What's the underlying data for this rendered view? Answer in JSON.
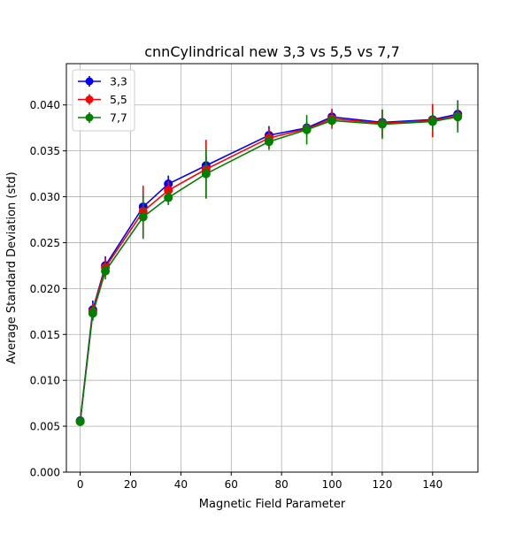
{
  "chart_data": {
    "type": "line",
    "title": "cnnCylindrical new 3,3 vs 5,5 vs 7,7",
    "xlabel": "Magnetic Field Parameter",
    "ylabel": "Average Standard Deviation (std)",
    "xlim": [
      -5.5,
      158
    ],
    "ylim": [
      0.0,
      0.0445
    ],
    "xticks": [
      0,
      20,
      40,
      60,
      80,
      100,
      120,
      140
    ],
    "xtick_labels": [
      "0",
      "20",
      "40",
      "60",
      "80",
      "100",
      "120",
      "140"
    ],
    "yticks": [
      0.0,
      0.005,
      0.01,
      0.015,
      0.02,
      0.025,
      0.03,
      0.035,
      0.04
    ],
    "ytick_labels": [
      "0.000",
      "0.005",
      "0.010",
      "0.015",
      "0.020",
      "0.025",
      "0.030",
      "0.035",
      "0.040"
    ],
    "grid": true,
    "legend_position": "top-left",
    "x": [
      0,
      5,
      10,
      25,
      35,
      50,
      75,
      90,
      100,
      120,
      140,
      150
    ],
    "series": [
      {
        "name": "3,3",
        "color": "#0000ff",
        "values": [
          0.0056,
          0.0177,
          0.0225,
          0.0289,
          0.0314,
          0.0334,
          0.0367,
          0.0375,
          0.0387,
          0.0381,
          0.0384,
          0.039
        ],
        "errors": [
          0.0003,
          0.001,
          0.001,
          0.0015,
          0.0009,
          0.001,
          0.001,
          0.0006,
          0.0007,
          0.0005,
          0.0006,
          0.0015
        ]
      },
      {
        "name": "5,5",
        "color": "#ff0000",
        "values": [
          0.0055,
          0.0175,
          0.0223,
          0.0284,
          0.0307,
          0.033,
          0.0364,
          0.0374,
          0.0385,
          0.038,
          0.0383,
          0.0388
        ],
        "errors": [
          0.0003,
          0.0009,
          0.001,
          0.0028,
          0.001,
          0.0032,
          0.0011,
          0.0008,
          0.0011,
          0.0015,
          0.0018,
          0.0012
        ]
      },
      {
        "name": "7,7",
        "color": "#008000",
        "values": [
          0.0055,
          0.0173,
          0.0219,
          0.0278,
          0.0299,
          0.0325,
          0.036,
          0.0373,
          0.0383,
          0.0379,
          0.0382,
          0.0387
        ],
        "errors": [
          0.0003,
          0.0008,
          0.0009,
          0.0024,
          0.0008,
          0.0027,
          0.0009,
          0.0016,
          0.0006,
          0.0016,
          0.0009,
          0.0017
        ]
      }
    ]
  }
}
